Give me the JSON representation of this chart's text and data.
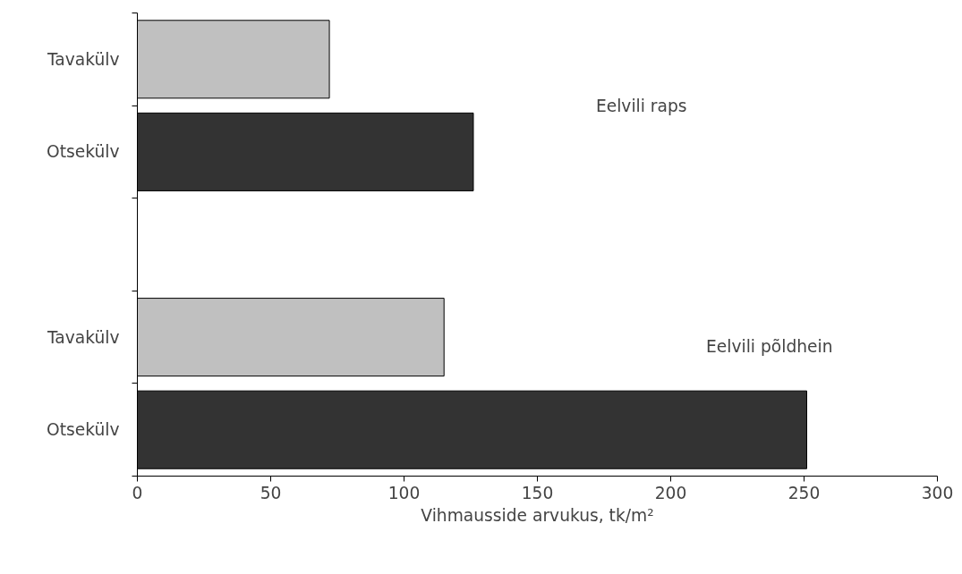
{
  "chart_data": {
    "type": "bar",
    "orientation": "horizontal",
    "xlabel": "Vihmausside arvukus, tk/m²",
    "categories": [
      "Tavakülv",
      "Otsekülv",
      null,
      "Tavakülv",
      "Otsekülv"
    ],
    "values": [
      72,
      126,
      null,
      115,
      251
    ],
    "colors": [
      "#c0c0c0",
      "#333333",
      "#ffffff",
      "#c0c0c0",
      "#333333"
    ],
    "xlim": [
      0,
      300
    ],
    "xticks": [
      0,
      50,
      100,
      150,
      200,
      250,
      300
    ],
    "grid": false,
    "annotations": [
      "Eelvili raps",
      "Eelvili põldhein"
    ]
  }
}
